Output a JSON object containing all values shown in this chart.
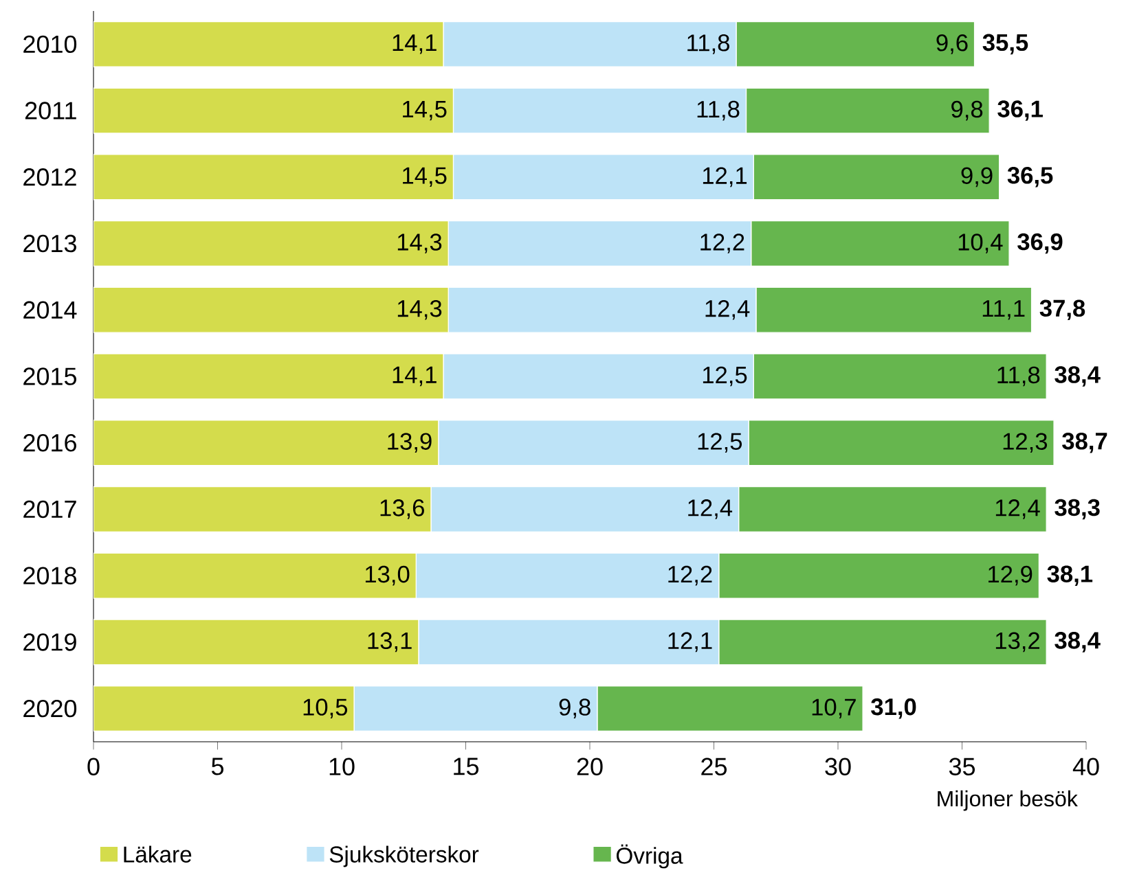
{
  "chart_data": {
    "type": "bar",
    "orientation": "horizontal",
    "stacked": true,
    "xlabel": "Miljoner besök",
    "categories": [
      "2010",
      "2011",
      "2012",
      "2013",
      "2014",
      "2015",
      "2016",
      "2017",
      "2018",
      "2019",
      "2020"
    ],
    "series": [
      {
        "name": "Läkare",
        "color": "#d4dc4c",
        "values": [
          14.1,
          14.5,
          14.5,
          14.3,
          14.3,
          14.1,
          13.9,
          13.6,
          13.0,
          13.1,
          10.5
        ],
        "value_labels": [
          "14,1",
          "14,5",
          "14,5",
          "14,3",
          "14,3",
          "14,1",
          "13,9",
          "13,6",
          "13,0",
          "13,1",
          "10,5"
        ]
      },
      {
        "name": "Sjuksköterskor",
        "color": "#bde3f7",
        "values": [
          11.8,
          11.8,
          12.1,
          12.2,
          12.4,
          12.5,
          12.5,
          12.4,
          12.2,
          12.1,
          9.8
        ],
        "value_labels": [
          "11,8",
          "11,8",
          "12,1",
          "12,2",
          "12,4",
          "12,5",
          "12,5",
          "12,4",
          "12,2",
          "12,1",
          "9,8"
        ]
      },
      {
        "name": "Övriga",
        "color": "#66b64e",
        "values": [
          9.6,
          9.8,
          9.9,
          10.4,
          11.1,
          11.8,
          12.3,
          12.4,
          12.9,
          13.2,
          10.7
        ],
        "value_labels": [
          "9,6",
          "9,8",
          "9,9",
          "10,4",
          "11,1",
          "11,8",
          "12,3",
          "12,4",
          "12,9",
          "13,2",
          "10,7"
        ]
      }
    ],
    "totals": [
      "35,5",
      "36,1",
      "36,5",
      "36,9",
      "37,8",
      "38,4",
      "38,7",
      "38,3",
      "38,1",
      "38,4",
      "31,0"
    ],
    "xlim": [
      0,
      40
    ],
    "xticks": [
      0,
      5,
      10,
      15,
      20,
      25,
      30,
      35,
      40
    ],
    "grid": false,
    "legend": "bottom"
  }
}
